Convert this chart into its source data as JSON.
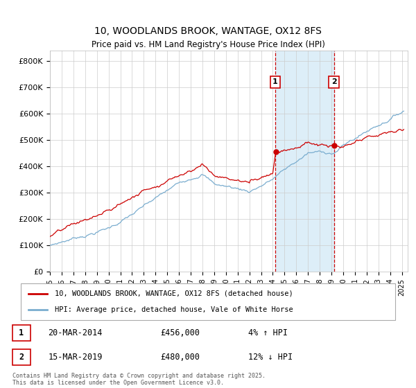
{
  "title": "10, WOODLANDS BROOK, WANTAGE, OX12 8FS",
  "subtitle": "Price paid vs. HM Land Registry's House Price Index (HPI)",
  "hpi_color": "#7aadcf",
  "price_color": "#cc0000",
  "highlight_color": "#ddeef8",
  "vline_color": "#cc0000",
  "sale1_date_num": 2014.21,
  "sale1_label": "1",
  "sale1_price": 456000,
  "sale1_date_str": "20-MAR-2014",
  "sale1_pct": "4%",
  "sale1_dir": "↑",
  "sale2_date_num": 2019.21,
  "sale2_label": "2",
  "sale2_price": 480000,
  "sale2_date_str": "15-MAR-2019",
  "sale2_pct": "12%",
  "sale2_dir": "↓",
  "ylabel_ticks": [
    "£0",
    "£100K",
    "£200K",
    "£300K",
    "£400K",
    "£500K",
    "£600K",
    "£700K",
    "£800K"
  ],
  "ytick_vals": [
    0,
    100000,
    200000,
    300000,
    400000,
    500000,
    600000,
    700000,
    800000
  ],
  "ylim": [
    0,
    840000
  ],
  "xlim_start": 1995.0,
  "xlim_end": 2025.5,
  "legend_line1": "10, WOODLANDS BROOK, WANTAGE, OX12 8FS (detached house)",
  "legend_line2": "HPI: Average price, detached house, Vale of White Horse",
  "footer": "Contains HM Land Registry data © Crown copyright and database right 2025.\nThis data is licensed under the Open Government Licence v3.0.",
  "bg_color": "#ffffff",
  "plot_bg_color": "#ffffff",
  "grid_color": "#cccccc"
}
